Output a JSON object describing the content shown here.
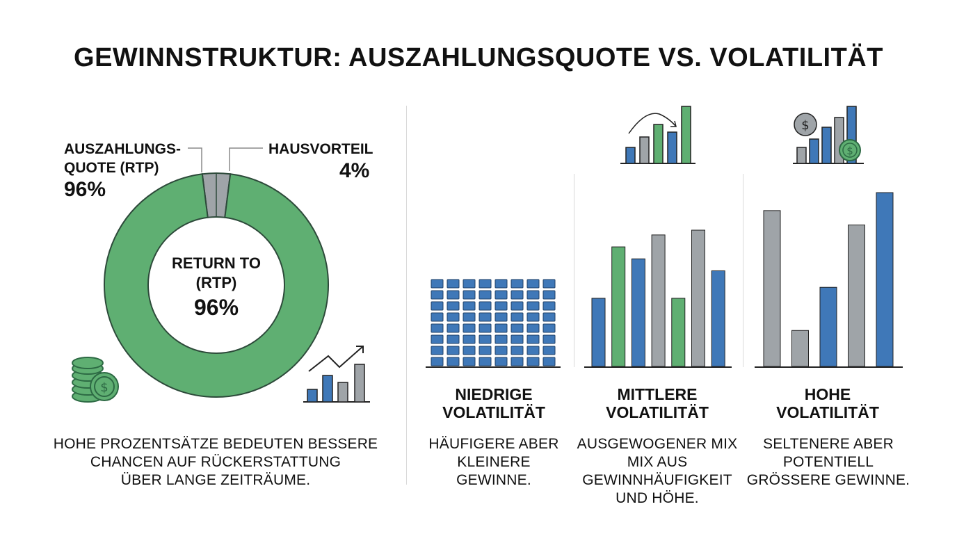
{
  "title": "GEWINNSTRUKTUR: AUSZAHLUNGSQUOTE VS. VOLATILITÄT",
  "colors": {
    "green": "#5faf72",
    "gray": "#9fa4a8",
    "blue": "#3f78b8",
    "outline": "#2d4a3a",
    "divider": "#d9d9d9"
  },
  "chart_data": [
    {
      "type": "pie",
      "slices": [
        {
          "label": "AUSZAHLUNGS-QUOTE (RTP)",
          "value": 96,
          "color": "#5faf72"
        },
        {
          "label": "HAUSVORTEIL",
          "value": 4,
          "color": "#9fa4a8"
        }
      ],
      "labels": {
        "rtp_line1": "AUSZAHLUNGS-",
        "rtp_line2": "QUOTE (RTP)",
        "rtp_value": "96%",
        "house_line1": "HAUSVORTEIL",
        "house_value": "4%"
      },
      "center": {
        "line1": "RETURN TO",
        "line2": "(RTP)",
        "value": "96%"
      },
      "caption": [
        "HOHE PROZENTSÄTZE BEDEUTEN BESSERE",
        "CHANCEN AUF RÜCKERSTATTUNG",
        "ÜBER LANGE ZEITRÄUME."
      ]
    },
    {
      "type": "bar",
      "title": [
        "NIEDRIGE",
        "VOLATILITÄT"
      ],
      "caption": [
        "HÄUFIGERE ABER",
        "KLEINERE",
        "GEWINNE."
      ],
      "columns": 8,
      "rows": 8
    },
    {
      "type": "bar",
      "title": [
        "MITTLERE",
        "VOLATILITÄT"
      ],
      "caption": [
        "AUSGEWOGENER MIX",
        "MIX AUS",
        "GEWINNHÄUFIGKEIT",
        "UND HÖHE."
      ],
      "values": [
        57,
        100,
        90,
        110,
        57,
        114,
        80
      ],
      "colors": [
        "blue",
        "green",
        "blue",
        "gray",
        "green",
        "gray",
        "blue"
      ]
    },
    {
      "type": "bar",
      "title": [
        "HOHE",
        "VOLATILITÄT"
      ],
      "caption": [
        "SELTENERE ABER",
        "POTENTIELL",
        "GRÖSSERE GEWINNE."
      ],
      "values": [
        130,
        30,
        66,
        118,
        145
      ],
      "colors": [
        "gray",
        "gray",
        "blue",
        "gray",
        "blue"
      ]
    }
  ]
}
